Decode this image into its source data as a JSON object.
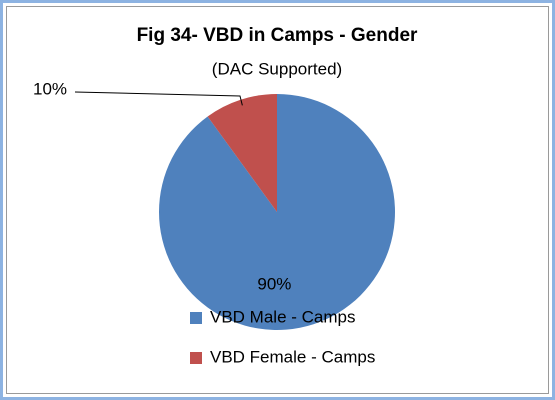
{
  "chart_data": {
    "type": "pie",
    "title": "Fig 34- VBD in Camps - Gender",
    "subtitle": "(DAC Supported)",
    "categories": [
      "VBD Male - Camps",
      "VBD Female - Camps"
    ],
    "values": [
      90,
      10
    ],
    "value_labels": [
      "90%",
      "10%"
    ],
    "colors": [
      "#4f81bd",
      "#c0504d"
    ]
  }
}
